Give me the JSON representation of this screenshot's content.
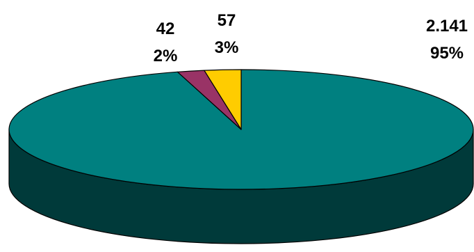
{
  "chart_data": {
    "type": "pie",
    "style": "3d-pie",
    "title": "",
    "legend": "none",
    "series": [
      {
        "values": [
          2141,
          42,
          57
        ],
        "value_labels": [
          "2.141",
          "42",
          "57"
        ],
        "percent_labels": [
          "95%",
          "2%",
          "3%"
        ],
        "colors": [
          "#008080",
          "#993366",
          "#FFCC00"
        ]
      }
    ]
  }
}
